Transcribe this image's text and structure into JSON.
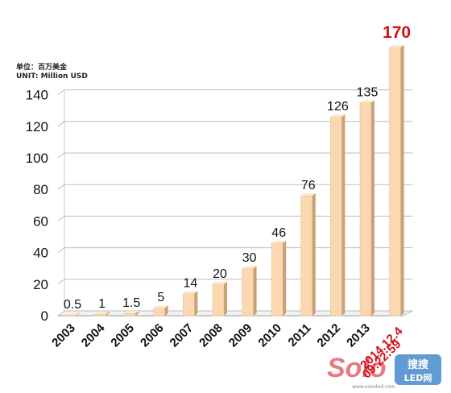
{
  "unit": {
    "cn": "单位：百万美金",
    "en": "UNIT: Million USD"
  },
  "colors": {
    "bar_front": "#fbd8b0",
    "bar_side": "#c9a27a",
    "bar_top": "#fde9d2",
    "grid": "#bdbdbd",
    "highlight": "#d0101a"
  },
  "chart_data": {
    "type": "bar",
    "title": "",
    "xlabel": "",
    "ylabel": "",
    "categories": [
      "2003",
      "2004",
      "2005",
      "2006",
      "2007",
      "2008",
      "2009",
      "2010",
      "2011",
      "2012",
      "2013",
      "2014.12.4 09:22:59"
    ],
    "values": [
      0.5,
      1,
      1.5,
      5,
      14,
      20,
      30,
      46,
      76,
      126,
      135,
      170
    ],
    "data_labels": [
      "0.5",
      "1",
      "1.5",
      "5",
      "14",
      "20",
      "30",
      "46",
      "76",
      "126",
      "135",
      "170"
    ],
    "ylim": [
      0,
      140
    ],
    "yticks": [
      0,
      20,
      40,
      60,
      80,
      100,
      120,
      140
    ],
    "grid": true,
    "legend": "none",
    "highlight_category": "2014.12.4 09:22:59",
    "note": "3D bars; last bar exceeds axis maximum"
  },
  "watermark": {
    "brand": "Solo",
    "cn": "搜搜",
    "cn2": "LED网",
    "url": "www.sosoled.com"
  }
}
